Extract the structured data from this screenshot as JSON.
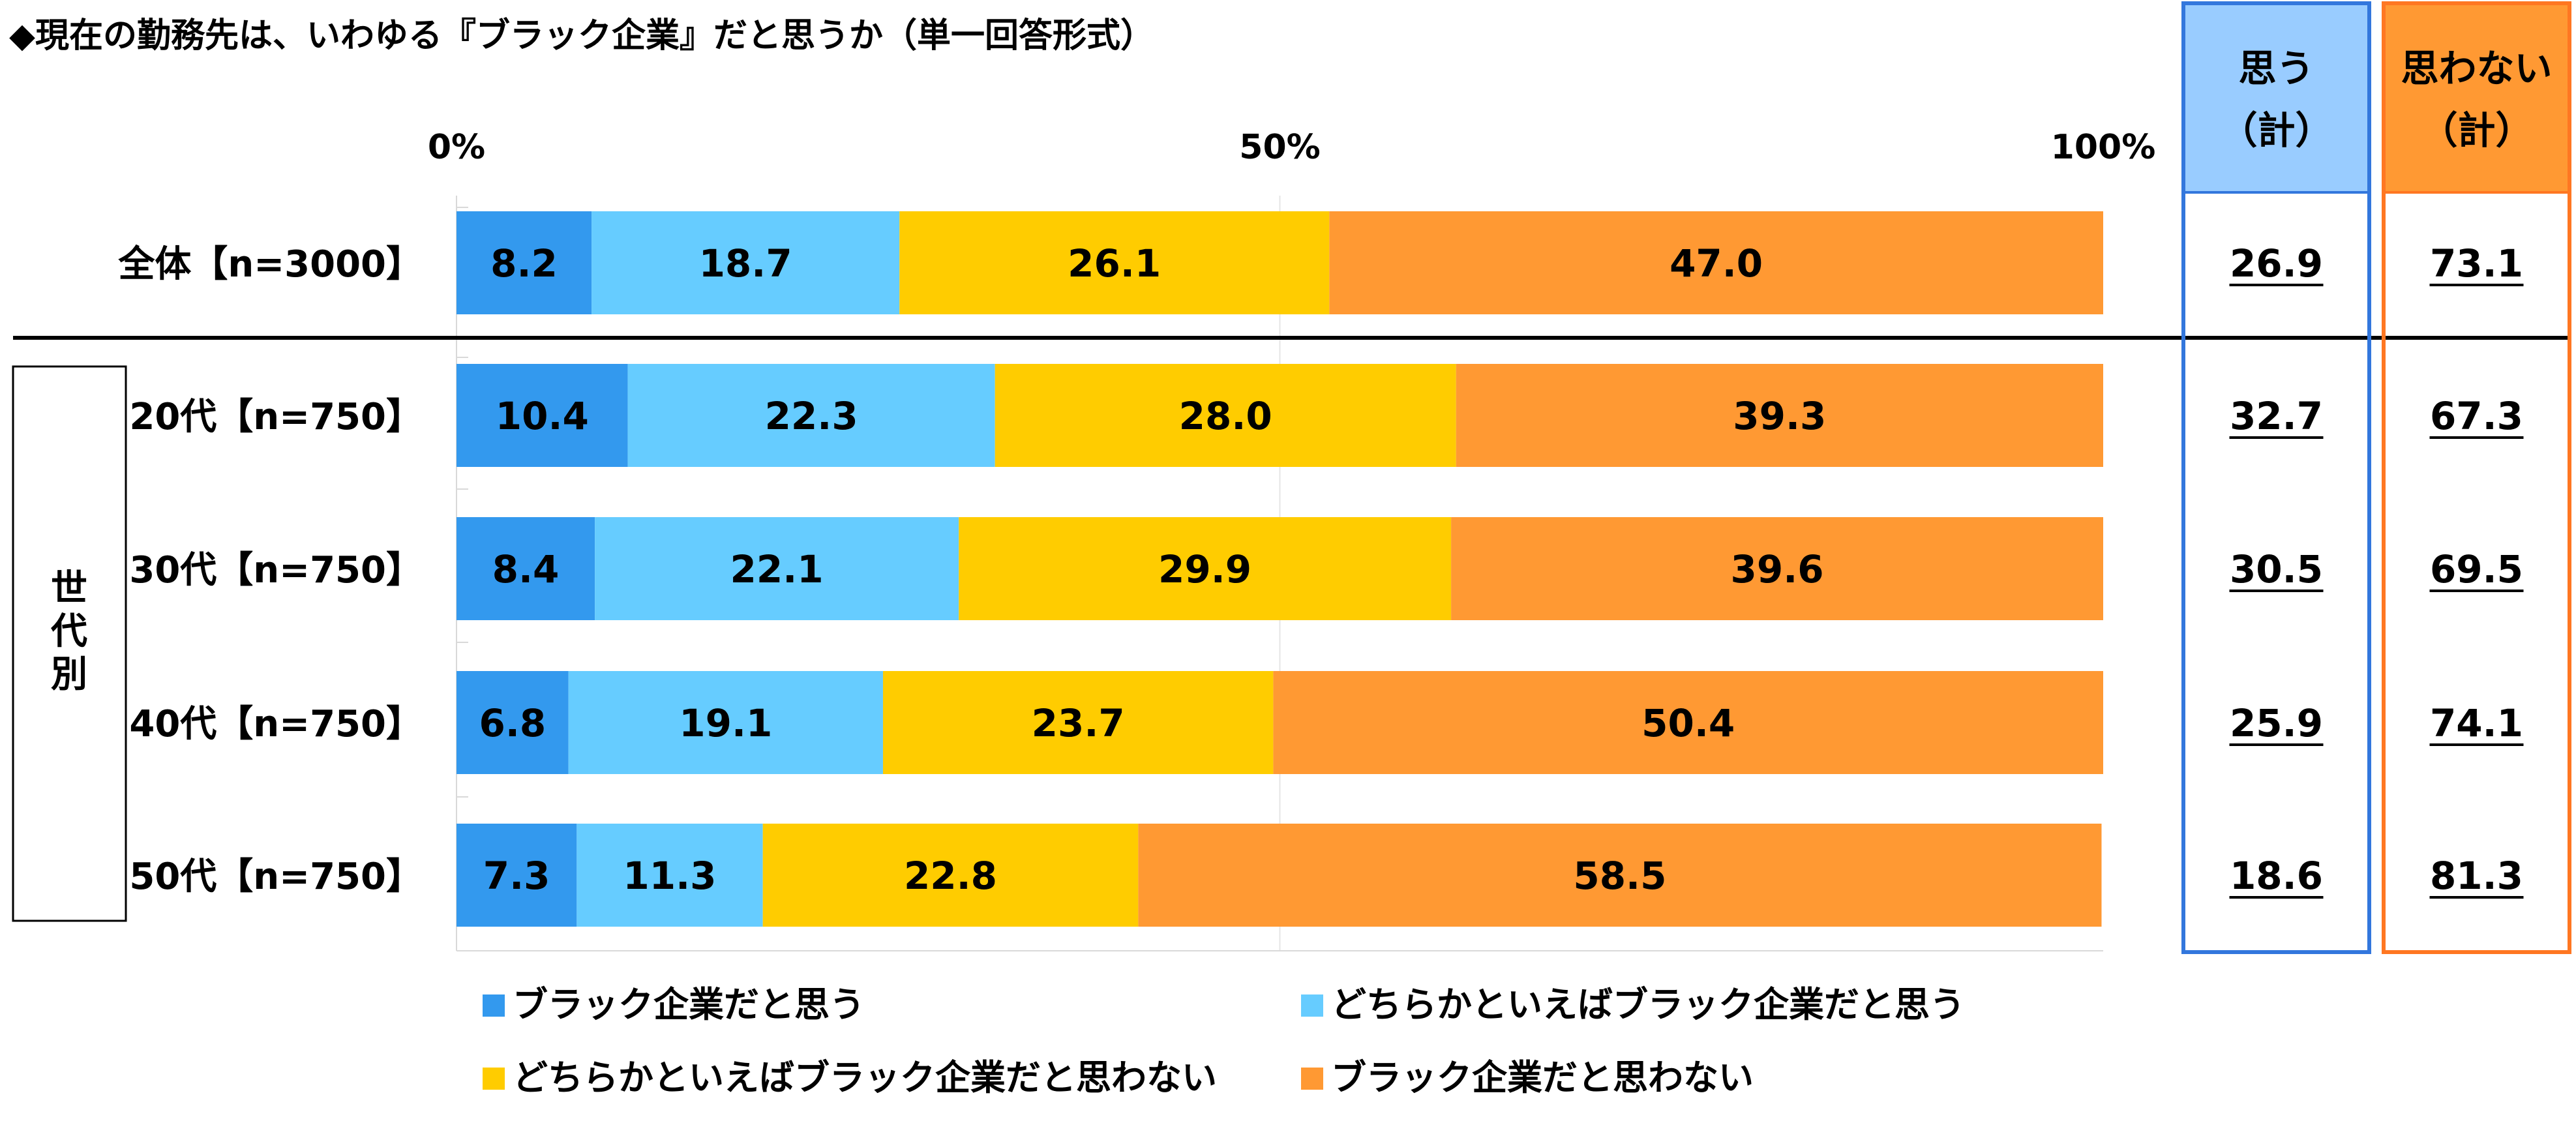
{
  "chart_data": {
    "type": "bar",
    "stacked": true,
    "orientation": "horizontal",
    "percent_scale": true,
    "title": "◆現在の勤務先は、いわゆる『ブラック企業』だと思うか（単一回答形式）",
    "x_ticks": [
      "0%",
      "50%",
      "100%"
    ],
    "xlim": [
      0,
      100
    ],
    "grid": true,
    "legend_position": "bottom",
    "categories": [
      "全体【n=3000】",
      "20代【n=750】",
      "30代【n=750】",
      "40代【n=750】",
      "50代【n=750】"
    ],
    "group_label": "世代別",
    "series": [
      {
        "name": "ブラック企業だと思う",
        "color": "#3399ee",
        "values": [
          8.2,
          10.4,
          8.4,
          6.8,
          7.3
        ]
      },
      {
        "name": "どちらかといえばブラック企業だと思う",
        "color": "#66ccff",
        "values": [
          18.7,
          22.3,
          22.1,
          19.1,
          11.3
        ]
      },
      {
        "name": "どちらかといえばブラック企業だと思わない",
        "color": "#ffcc00",
        "values": [
          26.1,
          28.0,
          29.9,
          23.7,
          22.8
        ]
      },
      {
        "name": "ブラック企業だと思わない",
        "color": "#ff9933",
        "values": [
          47.0,
          39.3,
          39.6,
          50.4,
          58.5
        ]
      }
    ],
    "summary_columns": [
      {
        "header_line1": "思う",
        "header_line2": "（計）",
        "header_color": "#99ccff",
        "border_color": "#3377dd",
        "values": [
          "26.9",
          "32.7",
          "30.5",
          "25.9",
          "18.6"
        ]
      },
      {
        "header_line1": "思わない",
        "header_line2": "（計）",
        "header_color": "#ff9933",
        "border_color": "#ff7722",
        "values": [
          "73.1",
          "67.3",
          "69.5",
          "74.1",
          "81.3"
        ]
      }
    ]
  }
}
